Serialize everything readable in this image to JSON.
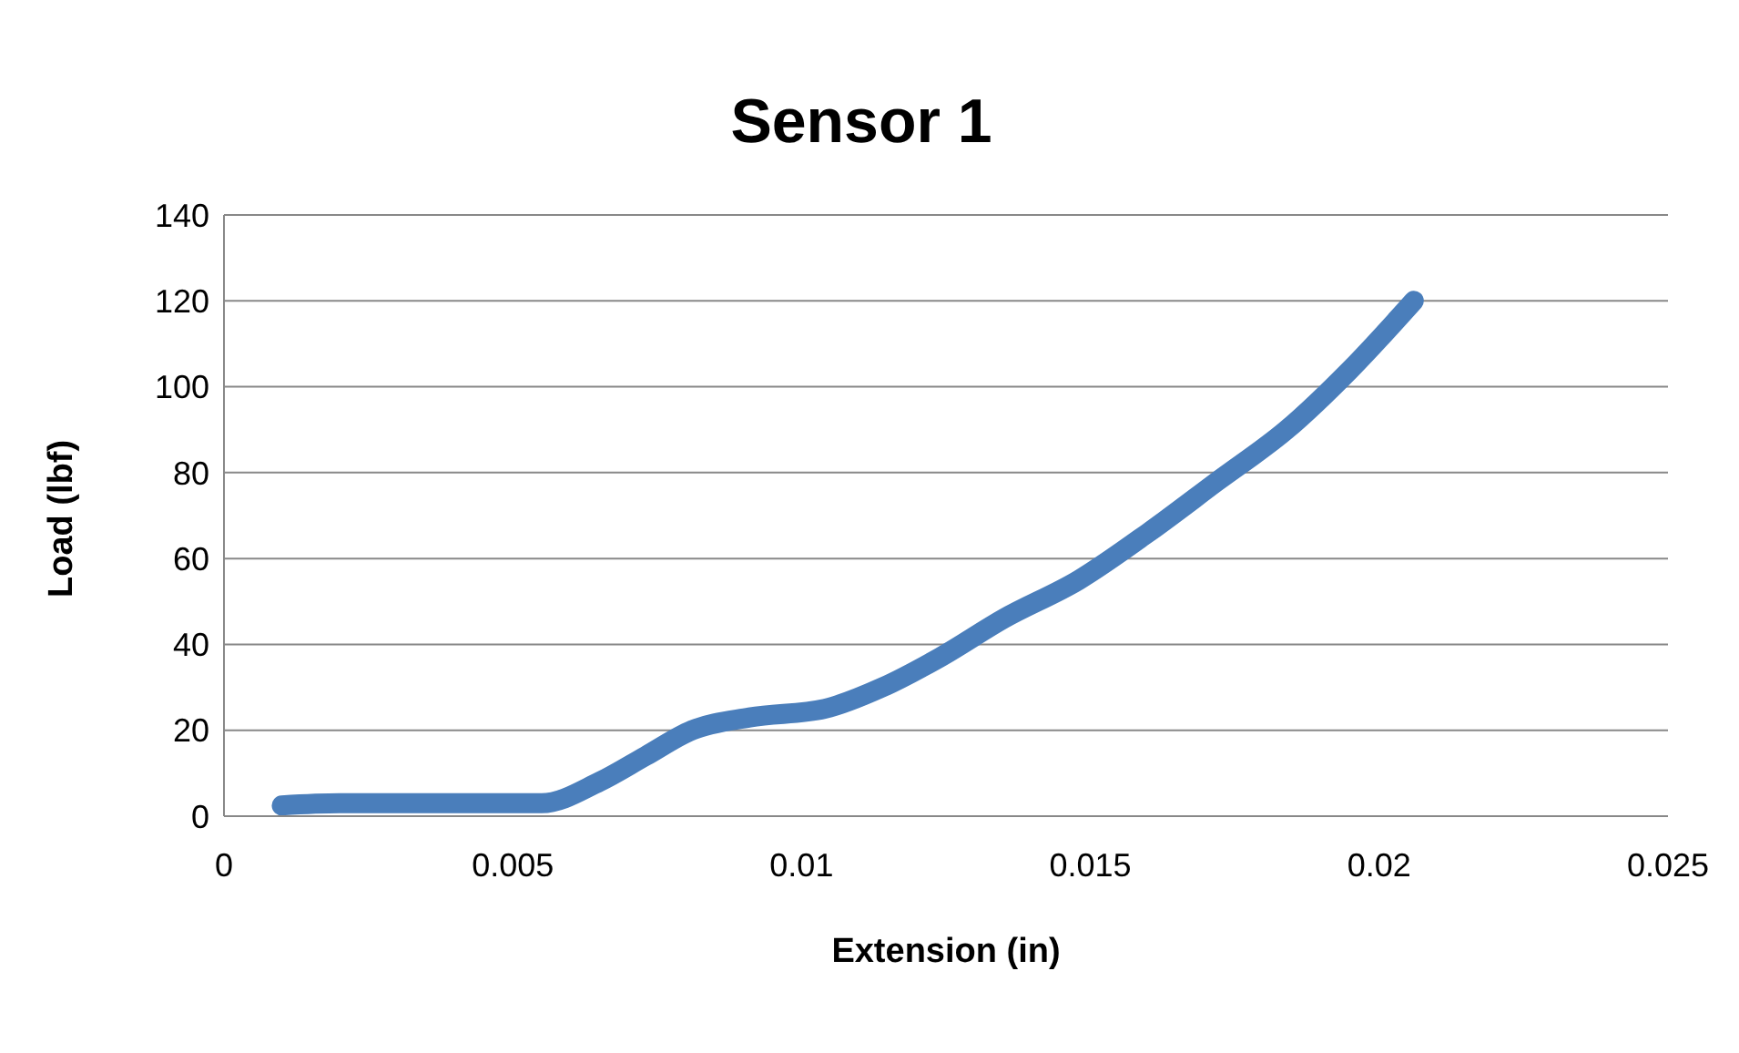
{
  "chart_data": {
    "type": "line",
    "title": "Sensor 1",
    "xlabel": "Extension (in)",
    "ylabel": "Load (lbf)",
    "x": [
      0.001,
      0.002,
      0.003,
      0.004,
      0.0055,
      0.0065,
      0.0073,
      0.0081,
      0.0091,
      0.0104,
      0.0114,
      0.0124,
      0.0135,
      0.0148,
      0.016,
      0.0172,
      0.0184,
      0.0195,
      0.0206
    ],
    "series": [
      {
        "color": "#4a7ebb",
        "values": [
          2.5,
          3,
          3,
          3,
          3,
          8,
          14,
          20,
          23,
          25,
          30,
          37,
          46,
          55,
          66,
          78,
          90,
          104,
          120
        ]
      }
    ],
    "xlim": [
      0,
      0.025
    ],
    "xticks": [
      0,
      0.005,
      0.01,
      0.015,
      0.02,
      0.025
    ],
    "ylim": [
      0,
      140
    ],
    "yticks": [
      0,
      20,
      40,
      60,
      80,
      100,
      120,
      140
    ],
    "grid": "y",
    "legend": false,
    "marker": "none",
    "line_style": "solid"
  }
}
